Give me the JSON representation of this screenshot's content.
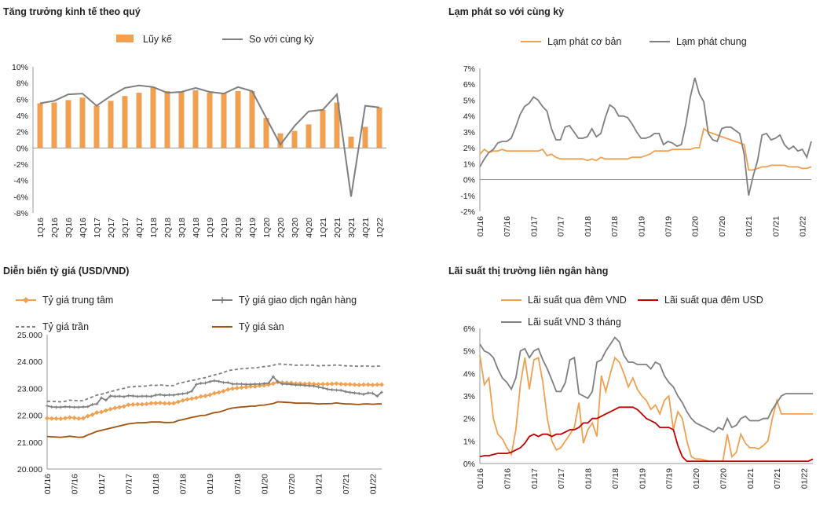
{
  "chart_data": [
    {
      "type": "bar",
      "title": "Tăng trưởng kinh tế theo quý",
      "categories": [
        "1Q16",
        "2Q16",
        "3Q16",
        "4Q16",
        "1Q17",
        "2Q17",
        "3Q17",
        "4Q17",
        "1Q18",
        "2Q18",
        "3Q18",
        "4Q18",
        "1Q19",
        "2Q19",
        "3Q19",
        "4Q19",
        "1Q20",
        "2Q20",
        "3Q20",
        "4Q20",
        "1Q21",
        "2Q21",
        "3Q21",
        "4Q21",
        "1Q22"
      ],
      "series": [
        {
          "name": "Lũy kế",
          "kind": "bar",
          "values": [
            5.5,
            5.6,
            5.9,
            6.2,
            5.2,
            5.8,
            6.4,
            6.8,
            7.5,
            7.0,
            6.9,
            7.1,
            6.8,
            6.8,
            7.0,
            7.0,
            3.7,
            1.8,
            2.1,
            2.9,
            4.7,
            5.6,
            1.4,
            2.6,
            5.0
          ]
        },
        {
          "name": "So với cùng kỳ",
          "kind": "line",
          "values": [
            5.5,
            5.8,
            6.6,
            6.7,
            5.2,
            6.4,
            7.4,
            7.7,
            7.5,
            6.8,
            6.9,
            7.4,
            6.9,
            6.7,
            7.5,
            7.0,
            3.7,
            0.4,
            2.7,
            4.5,
            4.7,
            6.6,
            -6.0,
            5.2,
            5.0
          ]
        }
      ],
      "ylim": [
        -8,
        10
      ],
      "yticks": [
        "-8%",
        "-6%",
        "-4%",
        "-2%",
        "0%",
        "2%",
        "4%",
        "6%",
        "8%",
        "10%"
      ],
      "legend": "top",
      "colors": {
        "bar": "#f0a050",
        "line": "#7f7f7f"
      }
    },
    {
      "type": "line",
      "title": "Lạm phát so với cùng kỳ",
      "x_start": "01/2016",
      "x_ticks": [
        "01/16",
        "07/16",
        "01/17",
        "07/17",
        "01/18",
        "07/18",
        "01/19",
        "07/19",
        "01/20",
        "07/20",
        "01/21",
        "07/21",
        "01/22"
      ],
      "series": [
        {
          "name": "Lạm phát cơ bản",
          "color": "#f0a050",
          "values": [
            1.6,
            1.9,
            1.7,
            1.8,
            1.8,
            1.9,
            1.8,
            1.8,
            1.8,
            1.8,
            1.8,
            1.8,
            1.8,
            1.8,
            1.9,
            1.5,
            1.6,
            1.4,
            1.3,
            1.3,
            1.3,
            1.3,
            1.3,
            1.3,
            1.2,
            1.3,
            1.2,
            1.4,
            1.3,
            1.3,
            1.3,
            1.3,
            1.3,
            1.3,
            1.4,
            1.4,
            1.4,
            1.5,
            1.6,
            1.8,
            1.8,
            1.8,
            1.8,
            1.9,
            1.9,
            1.9,
            1.9,
            1.9,
            2.0,
            2.0,
            3.2,
            3.0,
            2.9,
            2.8,
            2.7,
            2.6,
            2.5,
            2.4,
            2.3,
            2.2,
            0.6,
            0.6,
            0.7,
            0.8,
            0.8,
            0.9,
            0.9,
            0.9,
            0.9,
            0.8,
            0.8,
            0.8,
            0.7,
            0.7,
            0.8
          ]
        },
        {
          "name": "Lạm phát chung",
          "color": "#7f7f7f",
          "values": [
            0.8,
            1.3,
            1.7,
            1.9,
            2.3,
            2.4,
            2.4,
            2.6,
            3.3,
            4.1,
            4.6,
            4.8,
            5.2,
            5.0,
            4.6,
            4.3,
            3.2,
            2.5,
            2.5,
            3.3,
            3.4,
            3.0,
            2.6,
            2.6,
            2.7,
            3.2,
            2.7,
            2.9,
            3.9,
            4.7,
            4.5,
            4.0,
            4.0,
            3.9,
            3.5,
            3.0,
            2.6,
            2.6,
            2.7,
            2.9,
            2.9,
            2.2,
            2.4,
            2.3,
            2.1,
            2.2,
            3.5,
            5.2,
            6.4,
            5.4,
            4.9,
            2.9,
            2.5,
            2.4,
            3.2,
            3.3,
            3.3,
            3.1,
            2.9,
            1.6,
            -1.0,
            0.2,
            1.2,
            2.8,
            2.9,
            2.5,
            2.6,
            2.8,
            2.2,
            1.9,
            2.1,
            1.8,
            1.9,
            1.4,
            2.4
          ]
        }
      ],
      "ylim": [
        -2,
        7
      ],
      "yticks": [
        "-2%",
        "-1%",
        "0%",
        "1%",
        "2%",
        "3%",
        "4%",
        "5%",
        "6%",
        "7%"
      ],
      "legend": "top"
    },
    {
      "type": "line",
      "title": "Diễn biến tỷ giá (USD/VND)",
      "x_start": "01/2016",
      "x_ticks": [
        "01/16",
        "07/16",
        "01/17",
        "07/17",
        "01/18",
        "07/18",
        "01/19",
        "07/19",
        "01/20",
        "07/20",
        "01/21",
        "07/21",
        "01/22"
      ],
      "series": [
        {
          "name": "Tỷ giá trung tâm",
          "color": "#f0a050",
          "marker": "diamond",
          "values": [
            21890,
            21880,
            21880,
            21870,
            21890,
            21920,
            21900,
            21880,
            21890,
            21970,
            22020,
            22100,
            22120,
            22180,
            22230,
            22270,
            22300,
            22330,
            22390,
            22400,
            22410,
            22410,
            22420,
            22450,
            22450,
            22460,
            22440,
            22440,
            22450,
            22500,
            22550,
            22590,
            22620,
            22650,
            22700,
            22720,
            22760,
            22820,
            22850,
            22900,
            22960,
            22990,
            23010,
            23030,
            23050,
            23070,
            23070,
            23100,
            23110,
            23140,
            23180,
            23240,
            23220,
            23210,
            23200,
            23180,
            23180,
            23170,
            23180,
            23160,
            23150,
            23160,
            23160,
            23170,
            23180,
            23160,
            23150,
            23150,
            23140,
            23130,
            23140,
            23140,
            23130,
            23140,
            23140
          ]
        },
        {
          "name": "Tỷ giá giao dịch ngân hàng",
          "color": "#7f7f7f",
          "marker": "plus",
          "values": [
            22350,
            22310,
            22300,
            22300,
            22320,
            22310,
            22300,
            22300,
            22310,
            22320,
            22400,
            22420,
            22650,
            22560,
            22720,
            22700,
            22710,
            22690,
            22730,
            22720,
            22700,
            22710,
            22710,
            22700,
            22750,
            22770,
            22740,
            22760,
            22750,
            22780,
            22800,
            22830,
            22900,
            23150,
            23190,
            23200,
            23250,
            23290,
            23260,
            23220,
            23220,
            23160,
            23170,
            23160,
            23150,
            23150,
            23160,
            23160,
            23180,
            23200,
            23440,
            23250,
            23160,
            23160,
            23150,
            23130,
            23130,
            23110,
            23100,
            23090,
            23050,
            23020,
            22970,
            22950,
            22940,
            22930,
            22880,
            22850,
            22830,
            22810,
            22780,
            22830,
            22820,
            22710,
            22860
          ]
        },
        {
          "name": "Tỷ giá trần",
          "color": "#7f7f7f",
          "dash": true,
          "values": [
            22520,
            22520,
            22510,
            22500,
            22520,
            22560,
            22550,
            22540,
            22540,
            22620,
            22680,
            22750,
            22780,
            22830,
            22880,
            22920,
            22970,
            23000,
            23050,
            23060,
            23080,
            23080,
            23090,
            23120,
            23110,
            23130,
            23110,
            23100,
            23110,
            23180,
            23220,
            23260,
            23300,
            23320,
            23380,
            23400,
            23450,
            23500,
            23540,
            23590,
            23660,
            23690,
            23710,
            23730,
            23740,
            23760,
            23760,
            23790,
            23810,
            23830,
            23860,
            23910,
            23900,
            23890,
            23880,
            23860,
            23870,
            23860,
            23870,
            23860,
            23840,
            23850,
            23850,
            23860,
            23870,
            23860,
            23840,
            23840,
            23830,
            23820,
            23840,
            23830,
            23820,
            23830,
            23830
          ]
        },
        {
          "name": "Tỷ giá sàn",
          "color": "#a0520e",
          "values": [
            21210,
            21200,
            21190,
            21180,
            21200,
            21220,
            21200,
            21180,
            21190,
            21270,
            21330,
            21400,
            21440,
            21480,
            21520,
            21560,
            21600,
            21640,
            21680,
            21700,
            21720,
            21720,
            21730,
            21750,
            21750,
            21750,
            21730,
            21730,
            21740,
            21800,
            21840,
            21880,
            21920,
            21950,
            21990,
            22000,
            22050,
            22100,
            22120,
            22170,
            22230,
            22270,
            22290,
            22310,
            22320,
            22340,
            22340,
            22370,
            22380,
            22410,
            22440,
            22500,
            22490,
            22480,
            22470,
            22450,
            22450,
            22450,
            22450,
            22440,
            22420,
            22430,
            22430,
            22440,
            22460,
            22440,
            22420,
            22420,
            22410,
            22400,
            22420,
            22420,
            22410,
            22420,
            22420
          ]
        }
      ],
      "ylim": [
        20000,
        25000
      ],
      "yticks": [
        "20.000",
        "21.000",
        "22.000",
        "23.000",
        "24.000",
        "25.000"
      ],
      "legend": "top"
    },
    {
      "type": "line",
      "title": "Lãi suất thị trường liên ngân hàng",
      "x_start": "01/2016",
      "x_ticks": [
        "01/16",
        "07/16",
        "01/17",
        "07/17",
        "01/18",
        "07/18",
        "01/19",
        "07/19",
        "01/20",
        "07/20",
        "01/21",
        "07/21",
        "01/22"
      ],
      "series": [
        {
          "name": "Lãi suất qua đêm VND",
          "color": "#f0a050",
          "values": [
            4.8,
            3.5,
            3.8,
            2.0,
            1.3,
            1.1,
            0.7,
            0.4,
            1.5,
            3.5,
            4.7,
            3.3,
            4.6,
            4.7,
            3.6,
            2.0,
            1.0,
            0.6,
            0.7,
            1.0,
            1.3,
            1.6,
            2.7,
            0.9,
            1.5,
            1.8,
            1.2,
            3.9,
            3.2,
            4.0,
            4.7,
            4.5,
            4.0,
            3.4,
            3.8,
            3.3,
            3.0,
            2.8,
            2.4,
            2.6,
            2.2,
            2.8,
            3.0,
            1.5,
            2.3,
            2.0,
            1.0,
            0.3,
            0.2,
            0.2,
            0.15,
            0.1,
            0.1,
            0.1,
            0.1,
            1.3,
            0.3,
            0.5,
            1.3,
            0.9,
            0.7,
            0.7,
            0.65,
            0.8,
            1.0,
            2.0,
            2.8,
            2.2,
            2.2,
            2.2,
            2.2,
            2.2,
            2.2,
            2.2,
            2.2
          ]
        },
        {
          "name": "Lãi suất qua đêm USD",
          "color": "#c00000",
          "values": [
            0.3,
            0.35,
            0.35,
            0.4,
            0.45,
            0.45,
            0.45,
            0.5,
            0.6,
            0.7,
            0.9,
            1.2,
            1.3,
            1.2,
            1.3,
            1.3,
            1.2,
            1.3,
            1.3,
            1.4,
            1.5,
            1.5,
            1.6,
            1.8,
            1.8,
            2.0,
            2.0,
            2.1,
            2.2,
            2.3,
            2.4,
            2.5,
            2.5,
            2.5,
            2.5,
            2.4,
            2.2,
            2.0,
            1.9,
            1.8,
            1.6,
            1.6,
            1.6,
            1.5,
            0.8,
            0.3,
            0.1,
            0.1,
            0.1,
            0.1,
            0.1,
            0.1,
            0.1,
            0.1,
            0.1,
            0.1,
            0.1,
            0.1,
            0.1,
            0.1,
            0.1,
            0.1,
            0.1,
            0.1,
            0.1,
            0.1,
            0.1,
            0.1,
            0.1,
            0.1,
            0.1,
            0.1,
            0.1,
            0.1,
            0.2
          ]
        },
        {
          "name": "Lãi suất VND 3 tháng",
          "color": "#7f7f7f",
          "values": [
            5.3,
            5.0,
            4.9,
            4.7,
            4.2,
            3.8,
            3.6,
            3.3,
            3.8,
            5.0,
            5.1,
            4.7,
            5.0,
            5.1,
            4.6,
            4.2,
            3.7,
            3.2,
            3.2,
            3.6,
            4.6,
            4.7,
            3.1,
            3.0,
            2.9,
            3.2,
            4.5,
            4.6,
            5.0,
            5.3,
            5.6,
            5.4,
            4.8,
            4.5,
            4.5,
            4.4,
            4.4,
            4.4,
            4.2,
            4.5,
            4.4,
            3.9,
            3.6,
            3.4,
            3.0,
            2.7,
            2.3,
            2.0,
            1.8,
            1.7,
            1.6,
            1.5,
            1.4,
            1.6,
            1.5,
            2.0,
            1.6,
            1.7,
            2.0,
            2.1,
            1.9,
            1.9,
            1.9,
            2.0,
            2.0,
            2.4,
            2.7,
            3.0,
            3.1,
            3.1,
            3.1,
            3.1,
            3.1,
            3.1,
            3.1
          ]
        }
      ],
      "ylim": [
        0,
        6
      ],
      "yticks": [
        "0%",
        "1%",
        "2%",
        "3%",
        "4%",
        "5%",
        "6%"
      ],
      "legend": "top"
    }
  ]
}
